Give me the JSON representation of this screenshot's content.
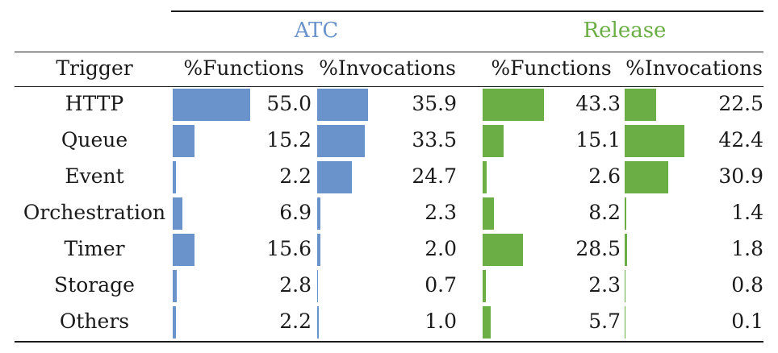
{
  "colors": {
    "atc": "#6A93CC",
    "release": "#6AAE45",
    "text": "#1a1a1a"
  },
  "chart_data": {
    "type": "table",
    "row_header": "Trigger",
    "groups": [
      {
        "name": "ATC",
        "color": "#6A93CC",
        "columns": [
          "%Functions",
          "%Invocations"
        ]
      },
      {
        "name": "Release",
        "color": "#6AAE45",
        "columns": [
          "%Functions",
          "%Invocations"
        ]
      }
    ],
    "rows": [
      {
        "trigger": "HTTP",
        "values": [
          "55.0",
          "35.9",
          "43.3",
          "22.5"
        ]
      },
      {
        "trigger": "Queue",
        "values": [
          "15.2",
          "33.5",
          "15.1",
          "42.4"
        ]
      },
      {
        "trigger": "Event",
        "values": [
          "2.2",
          "24.7",
          "2.6",
          "30.9"
        ]
      },
      {
        "trigger": "Orchestration",
        "values": [
          "6.9",
          "2.3",
          "8.2",
          "1.4"
        ]
      },
      {
        "trigger": "Timer",
        "values": [
          "15.6",
          "2.0",
          "28.5",
          "1.8"
        ]
      },
      {
        "trigger": "Storage",
        "values": [
          "2.8",
          "0.7",
          "2.3",
          "0.8"
        ]
      },
      {
        "trigger": "Others",
        "values": [
          "2.2",
          "1.0",
          "5.7",
          "0.1"
        ]
      }
    ]
  }
}
